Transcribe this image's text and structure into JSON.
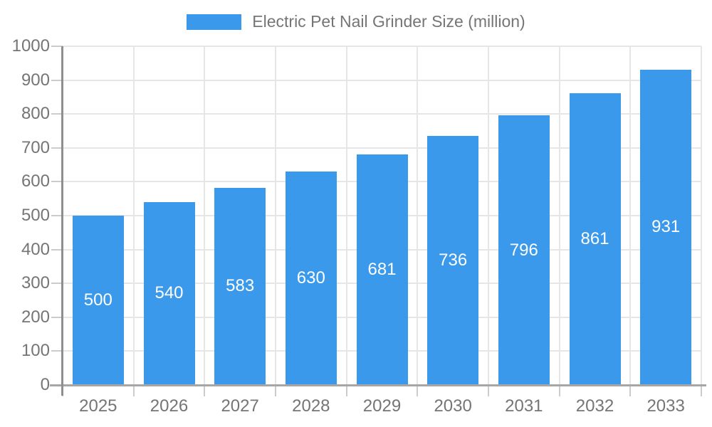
{
  "chart_data": {
    "type": "bar",
    "title": "Electric Pet Nail Grinder Size (million)",
    "categories": [
      "2025",
      "2026",
      "2027",
      "2028",
      "2029",
      "2030",
      "2031",
      "2032",
      "2033"
    ],
    "values": [
      500,
      540,
      583,
      630,
      681,
      736,
      796,
      861,
      931
    ],
    "xlabel": "",
    "ylabel": "",
    "ylim": [
      0,
      1000
    ],
    "ytick_step": 100,
    "ytick_labels": [
      "0",
      "100",
      "200",
      "300",
      "400",
      "500",
      "600",
      "700",
      "800",
      "900",
      "1000"
    ],
    "grid": true,
    "legend_position": "top-center",
    "value_labels": "inside-center",
    "colors": {
      "bar": "#3b99ec",
      "bar_label": "#ffffff",
      "axis_text": "#757575",
      "gridline": "#e6e6e6",
      "y_axis_line": "#8f8f8f",
      "x_axis_line": "#a6a6a6",
      "tick": "#cccccc",
      "background": "#ffffff"
    }
  }
}
